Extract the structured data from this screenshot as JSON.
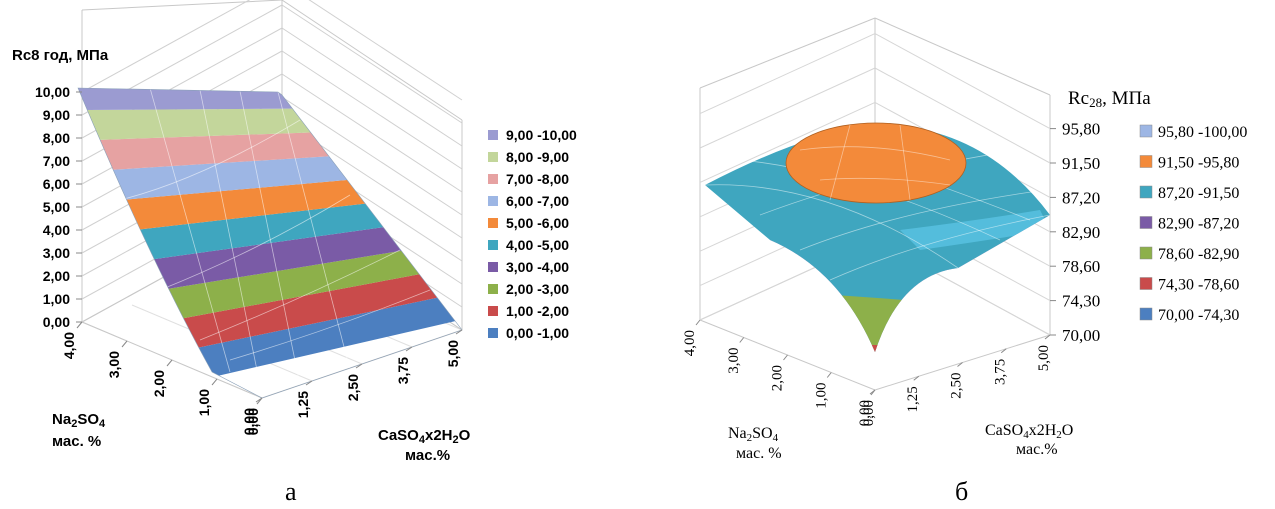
{
  "chart_data": [
    {
      "type": "surface",
      "panel_label": "а",
      "z_title": "Rc8 год, МПа",
      "x_title_main": "CaSO",
      "x_title_sub": "4",
      "x_title_rest": "x2H",
      "x_title_sub2": "2",
      "x_title_end": "O",
      "x_title_line2": "мас.%",
      "y_title_main": "Na",
      "y_title_sub": "2",
      "y_title_rest": "SO",
      "y_title_sub2": "4",
      "y_title_line2": "мас. %",
      "z_ticks": [
        "0,00",
        "1,00",
        "2,00",
        "3,00",
        "4,00",
        "5,00",
        "6,00",
        "7,00",
        "8,00",
        "9,00",
        "10,00"
      ],
      "zlim": [
        0,
        10
      ],
      "x_ticks": [
        "0,00",
        "1,25",
        "2,50",
        "3,75",
        "5,00"
      ],
      "xlim": [
        0,
        5
      ],
      "y_ticks": [
        "0,00",
        "1,00",
        "2,00",
        "3,00",
        "4,00"
      ],
      "ylim": [
        0,
        4
      ],
      "legend": [
        {
          "label": "9,00 -10,00",
          "color": "#9B9BD1"
        },
        {
          "label": "8,00 -9,00",
          "color": "#C3D69B"
        },
        {
          "label": "7,00 -8,00",
          "color": "#E6A2A2"
        },
        {
          "label": "6,00 -7,00",
          "color": "#9DB6E4"
        },
        {
          "label": "5,00 -6,00",
          "color": "#F38A3A"
        },
        {
          "label": "4,00 -5,00",
          "color": "#3FA6BF"
        },
        {
          "label": "3,00 -4,00",
          "color": "#7A5BA6"
        },
        {
          "label": "2,00 -3,00",
          "color": "#8DB04A"
        },
        {
          "label": "1,00 -2,00",
          "color": "#C94B4B"
        },
        {
          "label": "0,00 -1,00",
          "color": "#4C7FC0"
        }
      ]
    },
    {
      "type": "surface",
      "panel_label": "б",
      "z_title_main": "Rc",
      "z_title_sub": "28",
      "z_title_rest": ", МПа",
      "x_title_main": "CaSO",
      "x_title_sub": "4",
      "x_title_rest": "x2H",
      "x_title_sub2": "2",
      "x_title_end": "O",
      "x_title_line2": "мас.%",
      "y_title_main": "Na",
      "y_title_sub": "2",
      "y_title_rest": "SO",
      "y_title_sub2": "4",
      "y_title_line2": "мас. %",
      "z_ticks": [
        "70,00",
        "74,30",
        "78,60",
        "82,90",
        "87,20",
        "91,50",
        "95,80"
      ],
      "zlim": [
        70,
        100
      ],
      "x_ticks": [
        "0,00",
        "1,25",
        "2,50",
        "3,75",
        "5,00"
      ],
      "xlim": [
        0,
        5
      ],
      "y_ticks": [
        "0,00",
        "1,00",
        "2,00",
        "3,00",
        "4,00"
      ],
      "ylim": [
        0,
        4
      ],
      "legend": [
        {
          "label": "95,80 -100,00",
          "color": "#9DB6E4"
        },
        {
          "label": "91,50 -95,80",
          "color": "#F38A3A"
        },
        {
          "label": "87,20 -91,50",
          "color": "#3FA6BF"
        },
        {
          "label": "82,90 -87,20",
          "color": "#7A5BA6"
        },
        {
          "label": "78,60 -82,90",
          "color": "#8DB04A"
        },
        {
          "label": "74,30 -78,60",
          "color": "#C94B4B"
        },
        {
          "label": "70,00 -74,30",
          "color": "#4C7FC0"
        }
      ]
    }
  ]
}
